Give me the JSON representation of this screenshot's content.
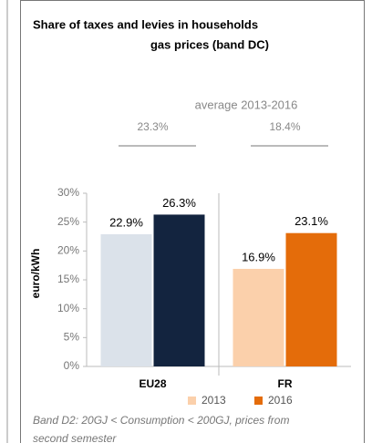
{
  "chart_data": {
    "type": "bar",
    "title": [
      "Share of taxes and levies in households",
      "gas prices (band DC)"
    ],
    "annotation_heading": "average 2013-2016",
    "annotations": [
      "23.3%",
      "18.4%"
    ],
    "ylabel": "euro/kWh",
    "categories": [
      "EU28",
      "FR"
    ],
    "series": [
      {
        "name": "2013",
        "color": "#fbd0ab",
        "colors": [
          "#dbe2ea",
          "#fbd0ab"
        ],
        "values": [
          22.9,
          16.9
        ],
        "value_labels": [
          "22.9%",
          "16.9%"
        ]
      },
      {
        "name": "2016",
        "color": "#e46c0a",
        "colors": [
          "#13243f",
          "#e46c0a"
        ],
        "values": [
          26.3,
          23.1
        ],
        "value_labels": [
          "26.3%",
          "23.1%"
        ]
      }
    ],
    "ylim": [
      0,
      30
    ],
    "yticks": [
      {
        "value": 0,
        "label": "0%"
      },
      {
        "value": 5,
        "label": "5%"
      },
      {
        "value": 10,
        "label": "10%"
      },
      {
        "value": 15,
        "label": "15%"
      },
      {
        "value": 20,
        "label": "20%"
      },
      {
        "value": 25,
        "label": "25%"
      },
      {
        "value": 30,
        "label": "30%"
      }
    ],
    "grid": false,
    "legend": "bottom",
    "footnote": [
      "Band D2: 20GJ < Consumption < 200GJ, prices from",
      "second semester"
    ]
  }
}
